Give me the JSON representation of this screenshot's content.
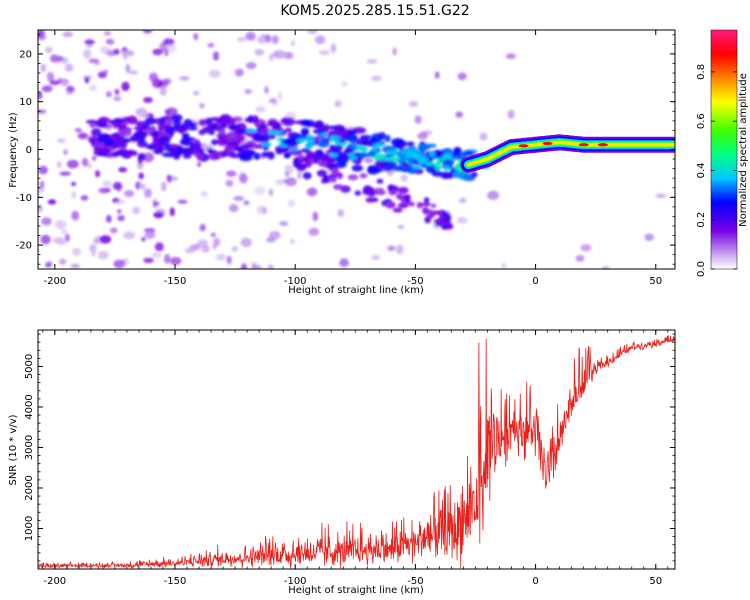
{
  "title": "KOM5.2025.285.15.51.G22",
  "chart_data": [
    {
      "type": "heatmap",
      "name": "spectrogram",
      "xlabel": "Height of straight line (km)",
      "ylabel": "Frequency (Hz)",
      "xlim": [
        -207,
        58
      ],
      "ylim": [
        -25,
        25
      ],
      "xticks": [
        -200,
        -150,
        -100,
        -50,
        0,
        50
      ],
      "yticks": [
        -20,
        -10,
        0,
        10,
        20
      ],
      "colorbar": {
        "label": "Normalized spectral amplitude",
        "range": [
          0.0,
          0.97
        ],
        "ticks": [
          0.0,
          0.2,
          0.4,
          0.6,
          0.8
        ],
        "colormap": "rainbow (white-violet-blue-cyan-green-yellow-red-pink)"
      },
      "ridge": [
        {
          "x": -180,
          "y": 2
        },
        {
          "x": -150,
          "y": 2.5
        },
        {
          "x": -120,
          "y": 2.5
        },
        {
          "x": -100,
          "y": 2
        },
        {
          "x": -80,
          "y": 0.5
        },
        {
          "x": -60,
          "y": -1
        },
        {
          "x": -40,
          "y": -2.5
        },
        {
          "x": -30,
          "y": -3.5
        },
        {
          "x": -20,
          "y": -2
        },
        {
          "x": -10,
          "y": 0.5
        },
        {
          "x": 0,
          "y": 1
        },
        {
          "x": 10,
          "y": 1.5
        },
        {
          "x": 20,
          "y": 1
        },
        {
          "x": 30,
          "y": 1
        },
        {
          "x": 58,
          "y": 1
        }
      ],
      "secondary_branch": [
        {
          "x": -100,
          "y": -2
        },
        {
          "x": -80,
          "y": -6
        },
        {
          "x": -60,
          "y": -10
        },
        {
          "x": -40,
          "y": -14
        }
      ]
    },
    {
      "type": "line",
      "name": "snr",
      "xlabel": "Height of straight line (km)",
      "ylabel": "SNR (10 * v/v)",
      "xlim": [
        -207,
        58
      ],
      "ylim": [
        0,
        5900
      ],
      "xticks": [
        -200,
        -150,
        -100,
        -50,
        0,
        50
      ],
      "yticks": [
        1000,
        2000,
        3000,
        4000,
        5000
      ],
      "color": "#e8201c",
      "envelope": [
        {
          "x": -207,
          "base": 60,
          "spread": 120
        },
        {
          "x": -170,
          "base": 80,
          "spread": 150
        },
        {
          "x": -150,
          "base": 120,
          "spread": 250
        },
        {
          "x": -120,
          "base": 250,
          "spread": 600
        },
        {
          "x": -100,
          "base": 300,
          "spread": 900
        },
        {
          "x": -80,
          "base": 350,
          "spread": 1000
        },
        {
          "x": -60,
          "base": 400,
          "spread": 1000
        },
        {
          "x": -40,
          "base": 700,
          "spread": 1600
        },
        {
          "x": -30,
          "base": 900,
          "spread": 2400
        },
        {
          "x": -22,
          "base": 1800,
          "spread": 3400
        },
        {
          "x": -20,
          "base": 2600,
          "spread": 2800
        },
        {
          "x": -10,
          "base": 3400,
          "spread": 1600
        },
        {
          "x": 0,
          "base": 3200,
          "spread": 1800
        },
        {
          "x": 5,
          "base": 2000,
          "spread": 2200
        },
        {
          "x": 15,
          "base": 4000,
          "spread": 900
        },
        {
          "x": 25,
          "base": 4900,
          "spread": 400
        },
        {
          "x": 40,
          "base": 5450,
          "spread": 250
        },
        {
          "x": 58,
          "base": 5650,
          "spread": 200
        }
      ]
    }
  ]
}
